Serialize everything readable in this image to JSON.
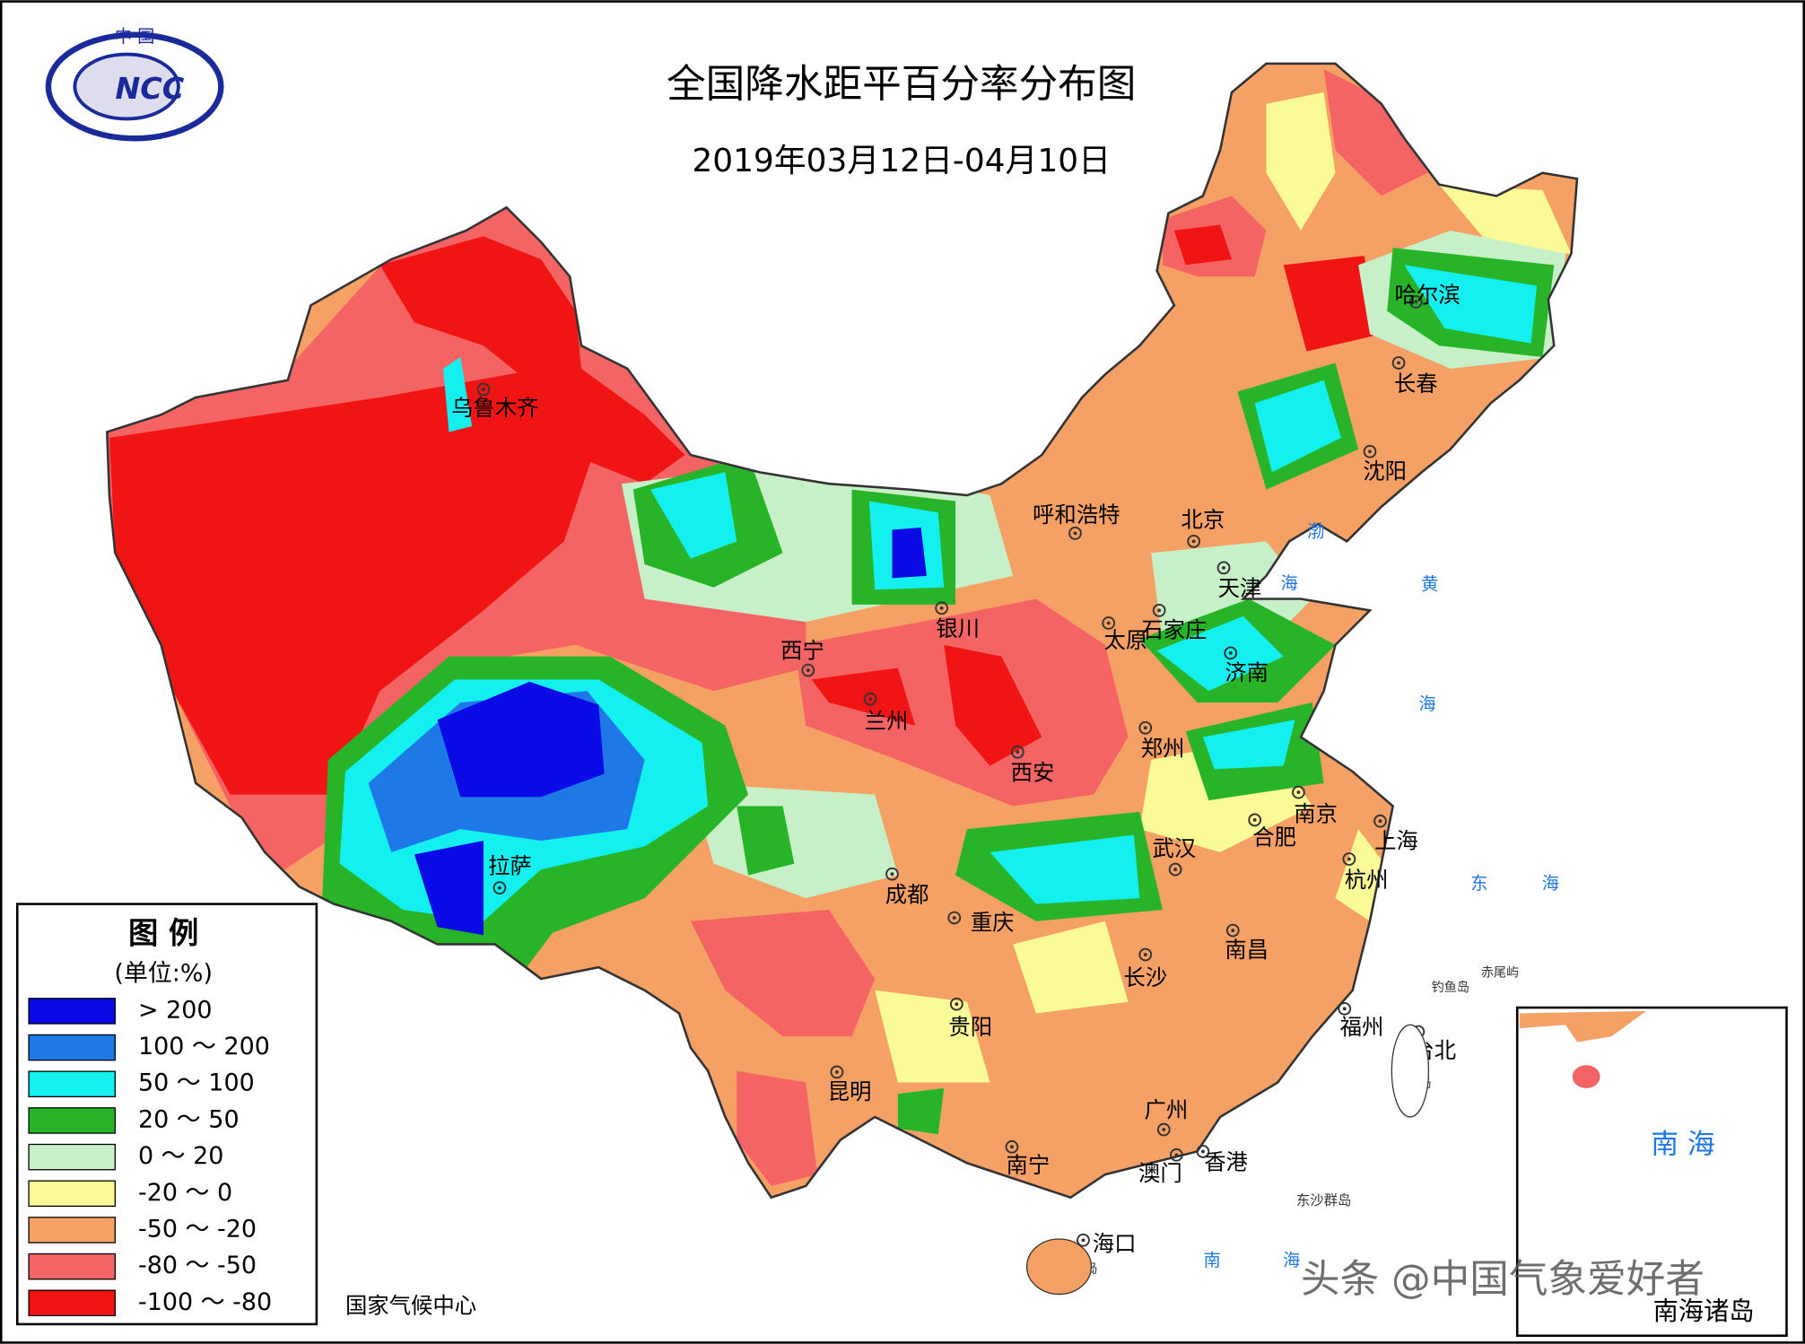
{
  "header": {
    "title": "全国降水距平百分率分布图",
    "subtitle": "2019年03月12日-04月10日"
  },
  "logo": {
    "top": "中 国",
    "text": "NCC"
  },
  "legend": {
    "title": "图 例",
    "unit": "(单位:%)",
    "items": [
      {
        "label": "> 200",
        "color": "#0a0ae6"
      },
      {
        "label": "100 ～ 200",
        "color": "#1e78e6"
      },
      {
        "label": "50 ～ 100",
        "color": "#14f0f0"
      },
      {
        "label": "20 ～ 50",
        "color": "#28b428"
      },
      {
        "label": "0 ～ 20",
        "color": "#c8f0c8"
      },
      {
        "label": "-20 ～ 0",
        "color": "#fafa96"
      },
      {
        "label": "-50 ～ -20",
        "color": "#f5a064"
      },
      {
        "label": "-80 ～ -50",
        "color": "#f56464"
      },
      {
        "label": "-100 ～ -80",
        "color": "#f01414"
      }
    ]
  },
  "cities": [
    "乌鲁木齐",
    "哈尔滨",
    "长春",
    "沈阳",
    "北京",
    "天津",
    "呼和浩特",
    "石家庄",
    "太原",
    "济南",
    "银川",
    "西宁",
    "兰州",
    "西安",
    "郑州",
    "南京",
    "合肥",
    "上海",
    "武汉",
    "杭州",
    "成都",
    "重庆",
    "拉萨",
    "南昌",
    "长沙",
    "福州",
    "台北",
    "贵阳",
    "昆明",
    "广州",
    "南宁",
    "香港",
    "澳门",
    "海口"
  ],
  "places": [
    "渤",
    "海",
    "黄",
    "海",
    "东",
    "海",
    "南",
    "海",
    "钓鱼岛",
    "赤尾屿",
    "台湾岛",
    "东沙群岛",
    "海南岛"
  ],
  "inset": {
    "sea": "南 海",
    "caption": "南海诸岛"
  },
  "footer": "国家气候中心",
  "watermark": "头条 @中国气象爱好者"
}
